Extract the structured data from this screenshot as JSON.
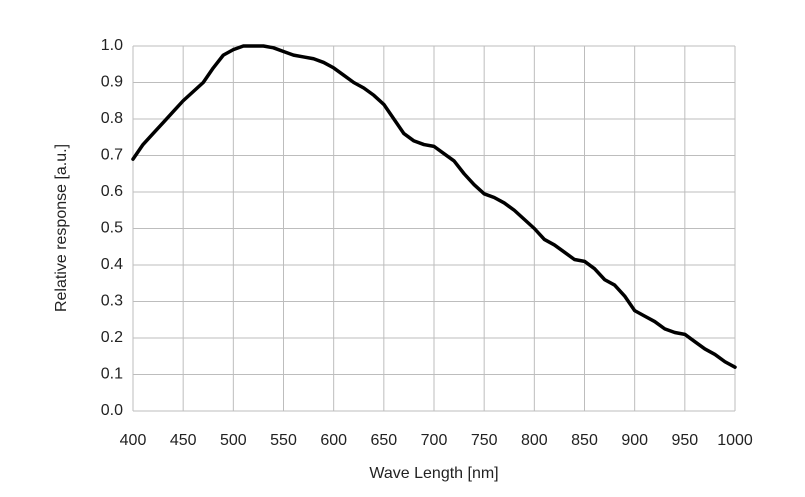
{
  "chart_data": {
    "type": "line",
    "xlabel": "Wave Length [nm]",
    "ylabel": "Relative response [a.u.]",
    "x": [
      400,
      410,
      420,
      430,
      440,
      450,
      460,
      470,
      480,
      490,
      500,
      510,
      520,
      530,
      540,
      550,
      560,
      570,
      580,
      590,
      600,
      610,
      620,
      630,
      640,
      650,
      660,
      670,
      680,
      690,
      700,
      710,
      720,
      730,
      740,
      750,
      760,
      770,
      780,
      790,
      800,
      810,
      820,
      830,
      840,
      850,
      860,
      870,
      880,
      890,
      900,
      910,
      920,
      930,
      940,
      950,
      960,
      970,
      980,
      990,
      1000
    ],
    "values": [
      0.69,
      0.73,
      0.76,
      0.79,
      0.82,
      0.85,
      0.875,
      0.9,
      0.94,
      0.975,
      0.99,
      1.0,
      1.0,
      1.0,
      0.995,
      0.985,
      0.975,
      0.97,
      0.965,
      0.955,
      0.94,
      0.92,
      0.9,
      0.885,
      0.865,
      0.84,
      0.8,
      0.76,
      0.74,
      0.73,
      0.725,
      0.705,
      0.685,
      0.65,
      0.62,
      0.595,
      0.585,
      0.57,
      0.55,
      0.525,
      0.5,
      0.47,
      0.455,
      0.435,
      0.415,
      0.41,
      0.39,
      0.36,
      0.345,
      0.315,
      0.275,
      0.26,
      0.245,
      0.225,
      0.215,
      0.21,
      0.19,
      0.17,
      0.155,
      0.135,
      0.12
    ],
    "color": "#000000",
    "xlim": [
      400,
      1000
    ],
    "xticks": [
      400,
      450,
      500,
      550,
      600,
      650,
      700,
      750,
      800,
      850,
      900,
      950,
      1000
    ],
    "ylim": [
      0,
      1
    ],
    "yticks": [
      {
        "value": 0,
        "label": "0.0"
      },
      0.1,
      0.2,
      0.3,
      0.4,
      0.5,
      0.6,
      0.7,
      0.8,
      0.9,
      {
        "value": 1,
        "label": "1.0"
      }
    ],
    "grid": true
  }
}
